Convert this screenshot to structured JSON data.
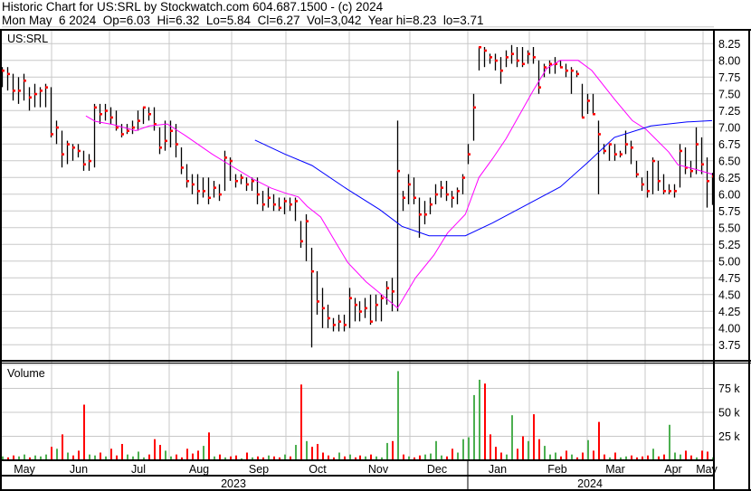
{
  "header": {
    "title": "Historic Chart for US:SRL by Stockwatch.com 604.687.1500 - (c) 2024",
    "summary": "Mon May  6 2024  Op=6.03  Hi=6.32  Lo=5.84  Cl=6.27  Vol=3,042  Year hi=8.23  lo=3.71"
  },
  "chart_data": {
    "type": "ohlc-bar",
    "symbol_label": "US:SRL",
    "volume_label": "Volume",
    "price_axis": {
      "ylim": [
        3.75,
        8.25
      ],
      "ticks": [
        "8.25",
        "8.00",
        "7.75",
        "7.50",
        "7.25",
        "7.00",
        "6.75",
        "6.50",
        "6.25",
        "6.00",
        "5.75",
        "5.50",
        "5.25",
        "5.00",
        "4.75",
        "4.50",
        "4.25",
        "4.00",
        "3.75"
      ],
      "position": "right"
    },
    "volume_axis": {
      "ticks": [
        {
          "value": 75,
          "label": "75 k"
        },
        {
          "value": 50,
          "label": "50 k"
        },
        {
          "value": 25,
          "label": "25 k"
        }
      ],
      "unit": "k"
    },
    "months": [
      "May",
      "Jun",
      "Jul",
      "Aug",
      "Sep",
      "Oct",
      "Nov",
      "Dec",
      "Jan",
      "Feb",
      "Mar",
      "Apr",
      "May"
    ],
    "years": [
      "2023",
      "2024"
    ],
    "grid": true,
    "colors": {
      "bar": "#000000",
      "close_tick": "#ff0000",
      "ma_short": "#ff00ff",
      "ma_long": "#0000ff",
      "vol_up": "#4caf50",
      "vol_down": "#ff0000",
      "grid": "#c8c8c8"
    },
    "bars_hlc": [
      [
        7.9,
        7.6,
        7.85
      ],
      [
        7.9,
        7.55,
        7.8
      ],
      [
        7.8,
        7.4,
        7.55
      ],
      [
        7.75,
        7.35,
        7.55
      ],
      [
        7.8,
        7.4,
        7.7
      ],
      [
        7.6,
        7.25,
        7.45
      ],
      [
        7.65,
        7.3,
        7.5
      ],
      [
        7.6,
        7.3,
        7.55
      ],
      [
        7.65,
        7.3,
        7.6
      ],
      [
        7.6,
        6.85,
        6.9
      ],
      [
        7.1,
        6.75,
        7.0
      ],
      [
        6.95,
        6.4,
        6.6
      ],
      [
        6.8,
        6.45,
        6.75
      ],
      [
        6.75,
        6.5,
        6.7
      ],
      [
        6.75,
        6.55,
        6.65
      ],
      [
        6.65,
        6.35,
        6.45
      ],
      [
        6.6,
        6.35,
        6.5
      ],
      [
        7.35,
        6.4,
        7.3
      ],
      [
        7.35,
        7.05,
        7.2
      ],
      [
        7.35,
        7.1,
        7.25
      ],
      [
        7.3,
        7.05,
        7.15
      ],
      [
        7.25,
        6.95,
        7.0
      ],
      [
        7.05,
        6.85,
        6.9
      ],
      [
        7.05,
        6.9,
        6.95
      ],
      [
        7.1,
        6.9,
        7.0
      ],
      [
        7.25,
        6.95,
        7.1
      ],
      [
        7.3,
        7.05,
        7.3
      ],
      [
        7.3,
        7.1,
        7.2
      ],
      [
        7.3,
        6.95,
        7.05
      ],
      [
        7.0,
        6.6,
        6.7
      ],
      [
        7.1,
        6.65,
        6.8
      ],
      [
        7.1,
        6.7,
        6.95
      ],
      [
        7.05,
        6.55,
        6.75
      ],
      [
        6.7,
        6.3,
        6.4
      ],
      [
        6.45,
        6.1,
        6.2
      ],
      [
        6.3,
        6.0,
        6.15
      ],
      [
        6.3,
        5.85,
        6.05
      ],
      [
        6.25,
        5.95,
        6.05
      ],
      [
        6.25,
        5.85,
        5.95
      ],
      [
        6.2,
        5.95,
        6.1
      ],
      [
        6.15,
        5.9,
        6.0
      ],
      [
        6.65,
        6.05,
        6.55
      ],
      [
        6.55,
        6.2,
        6.5
      ],
      [
        6.3,
        6.1,
        6.2
      ],
      [
        6.3,
        6.15,
        6.25
      ],
      [
        6.25,
        6.05,
        6.15
      ],
      [
        6.25,
        6.05,
        6.2
      ],
      [
        6.25,
        5.85,
        6.0
      ],
      [
        6.05,
        5.75,
        5.85
      ],
      [
        6.1,
        5.8,
        5.95
      ],
      [
        6.0,
        5.75,
        5.85
      ],
      [
        5.95,
        5.75,
        5.8
      ],
      [
        5.95,
        5.7,
        5.9
      ],
      [
        5.95,
        5.75,
        5.85
      ],
      [
        5.95,
        5.6,
        5.9
      ],
      [
        5.6,
        5.2,
        5.3
      ],
      [
        5.7,
        5.0,
        5.6
      ],
      [
        5.2,
        3.71,
        4.85
      ],
      [
        4.85,
        4.2,
        4.4
      ],
      [
        4.6,
        4.0,
        4.3
      ],
      [
        4.35,
        4.0,
        4.15
      ],
      [
        4.15,
        3.95,
        4.05
      ],
      [
        4.2,
        3.95,
        4.1
      ],
      [
        4.2,
        3.95,
        4.05
      ],
      [
        4.6,
        4.0,
        4.45
      ],
      [
        4.45,
        4.1,
        4.35
      ],
      [
        4.4,
        4.1,
        4.25
      ],
      [
        4.45,
        4.15,
        4.3
      ],
      [
        4.5,
        4.05,
        4.1
      ],
      [
        4.5,
        4.1,
        4.35
      ],
      [
        4.5,
        4.1,
        4.45
      ],
      [
        4.7,
        4.35,
        4.6
      ],
      [
        4.75,
        4.25,
        4.55
      ],
      [
        7.1,
        4.25,
        6.35
      ],
      [
        6.05,
        5.75,
        5.95
      ],
      [
        6.3,
        5.85,
        6.15
      ],
      [
        6.25,
        5.85,
        5.95
      ],
      [
        5.95,
        5.35,
        5.7
      ],
      [
        5.9,
        5.55,
        5.7
      ],
      [
        5.95,
        5.7,
        5.85
      ],
      [
        6.15,
        5.85,
        6.0
      ],
      [
        6.2,
        5.95,
        6.1
      ],
      [
        6.2,
        5.9,
        6.0
      ],
      [
        6.05,
        5.8,
        5.95
      ],
      [
        6.1,
        5.85,
        6.05
      ],
      [
        6.3,
        6.0,
        6.25
      ],
      [
        6.75,
        6.45,
        6.6
      ],
      [
        7.5,
        6.8,
        7.3
      ],
      [
        8.2,
        7.85,
        8.2
      ],
      [
        8.2,
        7.9,
        8.15
      ],
      [
        8.1,
        7.95,
        8.05
      ],
      [
        8.1,
        7.85,
        8.0
      ],
      [
        8.05,
        7.65,
        7.85
      ],
      [
        8.15,
        7.9,
        8.05
      ],
      [
        8.23,
        7.95,
        8.1
      ],
      [
        8.2,
        7.9,
        8.0
      ],
      [
        8.2,
        7.9,
        7.95
      ],
      [
        8.15,
        7.95,
        8.1
      ],
      [
        8.2,
        7.95,
        8.05
      ],
      [
        8.0,
        7.5,
        7.6
      ],
      [
        7.95,
        7.75,
        7.9
      ],
      [
        8.0,
        7.8,
        7.95
      ],
      [
        8.05,
        7.8,
        7.95
      ],
      [
        8.0,
        7.9,
        7.9
      ],
      [
        7.95,
        7.75,
        7.85
      ],
      [
        7.9,
        7.5,
        7.85
      ],
      [
        7.85,
        7.75,
        7.8
      ],
      [
        7.65,
        7.15,
        7.15
      ],
      [
        7.5,
        7.2,
        7.4
      ],
      [
        7.5,
        7.2,
        7.2
      ],
      [
        7.1,
        6.0,
        6.9
      ],
      [
        6.75,
        6.6,
        6.65
      ],
      [
        6.75,
        6.5,
        6.75
      ],
      [
        6.75,
        6.5,
        6.6
      ],
      [
        6.65,
        6.55,
        6.6
      ],
      [
        6.95,
        6.6,
        6.75
      ],
      [
        6.8,
        6.45,
        6.7
      ],
      [
        6.5,
        6.25,
        6.3
      ],
      [
        6.25,
        6.05,
        6.15
      ],
      [
        6.35,
        5.95,
        6.05
      ],
      [
        6.55,
        6.0,
        6.5
      ],
      [
        6.5,
        6.05,
        6.2
      ],
      [
        6.3,
        6.0,
        6.05
      ],
      [
        6.15,
        6.0,
        6.05
      ],
      [
        6.15,
        5.95,
        6.05
      ],
      [
        6.75,
        6.1,
        6.65
      ],
      [
        6.7,
        6.3,
        6.4
      ],
      [
        6.5,
        6.25,
        6.35
      ],
      [
        7.0,
        6.3,
        6.75
      ],
      [
        6.85,
        6.3,
        6.45
      ],
      [
        6.55,
        5.8,
        6.2
      ],
      [
        6.32,
        5.84,
        6.27
      ]
    ],
    "volume_k": [
      4,
      3,
      5,
      4,
      6,
      3,
      5,
      4,
      6,
      14,
      12,
      27,
      8,
      5,
      10,
      58,
      6,
      5,
      8,
      4,
      12,
      5,
      17,
      6,
      4,
      9,
      3,
      6,
      22,
      16,
      10,
      4,
      6,
      3,
      12,
      7,
      10,
      15,
      29,
      4,
      6,
      3,
      4,
      5,
      2,
      8,
      3,
      4,
      3,
      5,
      4,
      3,
      6,
      4,
      16,
      79,
      20,
      14,
      17,
      8,
      5,
      3,
      8,
      4,
      6,
      3,
      5,
      4,
      6,
      4,
      3,
      18,
      20,
      93,
      6,
      4,
      3,
      5,
      6,
      7,
      20,
      5,
      4,
      12,
      8,
      22,
      24,
      68,
      84,
      80,
      27,
      14,
      8,
      6,
      47,
      12,
      25,
      20,
      48,
      22,
      15,
      6,
      8,
      4,
      10,
      6,
      3,
      8,
      21,
      10,
      40,
      6,
      3,
      8,
      3,
      4,
      5,
      3,
      4,
      5,
      12,
      4,
      6,
      37,
      8,
      6,
      10,
      5,
      3,
      10,
      9,
      3
    ],
    "ma_short": [
      [
        15.5,
        7.17
      ],
      [
        17.2,
        7.09
      ],
      [
        20.5,
        7.04
      ],
      [
        24.7,
        6.95
      ],
      [
        27.2,
        7.02
      ],
      [
        30.5,
        7.05
      ],
      [
        33.8,
        6.88
      ],
      [
        38.8,
        6.6
      ],
      [
        42.2,
        6.43
      ],
      [
        46.3,
        6.23
      ],
      [
        49.7,
        6.09
      ],
      [
        52.2,
        6.02
      ],
      [
        54.7,
        5.96
      ],
      [
        56.3,
        5.82
      ],
      [
        58.8,
        5.66
      ],
      [
        61.3,
        5.32
      ],
      [
        63.8,
        4.98
      ],
      [
        67.2,
        4.69
      ],
      [
        69.3,
        4.55
      ],
      [
        73,
        4.3
      ],
      [
        76.3,
        4.75
      ],
      [
        79.7,
        5.09
      ],
      [
        82.2,
        5.42
      ],
      [
        85.5,
        5.7
      ],
      [
        88,
        6.25
      ],
      [
        90.5,
        6.53
      ],
      [
        93,
        6.83
      ],
      [
        95.5,
        7.19
      ],
      [
        98,
        7.55
      ],
      [
        100.5,
        7.88
      ],
      [
        103,
        8.0
      ],
      [
        106.3,
        8.0
      ],
      [
        108.8,
        7.85
      ],
      [
        113,
        7.42
      ],
      [
        116.3,
        7.1
      ],
      [
        118.8,
        6.97
      ],
      [
        123,
        6.63
      ],
      [
        124.7,
        6.44
      ],
      [
        128,
        6.37
      ],
      [
        131,
        6.3
      ]
    ],
    "ma_long": [
      [
        46.7,
        6.81
      ],
      [
        52.2,
        6.6
      ],
      [
        57.2,
        6.43
      ],
      [
        63.8,
        6.07
      ],
      [
        69.7,
        5.77
      ],
      [
        73.8,
        5.52
      ],
      [
        78.8,
        5.38
      ],
      [
        85.5,
        5.38
      ],
      [
        90.5,
        5.57
      ],
      [
        96.3,
        5.82
      ],
      [
        103,
        6.11
      ],
      [
        108,
        6.47
      ],
      [
        113,
        6.85
      ],
      [
        119.7,
        7.02
      ],
      [
        126.3,
        7.08
      ],
      [
        131,
        7.1
      ]
    ]
  }
}
